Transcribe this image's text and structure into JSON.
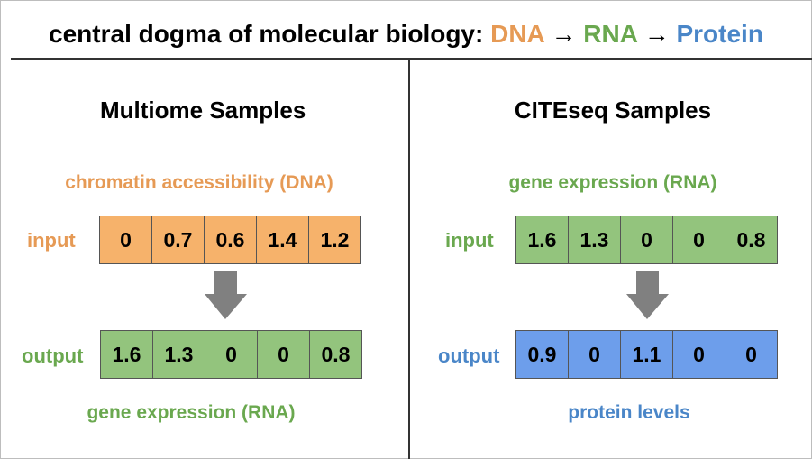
{
  "header": {
    "prefix": "central dogma of molecular biology: ",
    "dna": "DNA",
    "arrow1": " → ",
    "rna": "RNA",
    "arrow2": " → ",
    "protein": "Protein"
  },
  "colors": {
    "dna_text": "#e69a55",
    "rna_text": "#6aa84f",
    "protein_text": "#4a86c8",
    "dna_cell": "#f6b26b",
    "rna_cell": "#93c47d",
    "protein_cell": "#6d9eeb",
    "arrow": "#808080"
  },
  "panels": [
    {
      "title": "Multiome Samples",
      "input_caption": "chromatin accessibility (DNA)",
      "input_label": "input",
      "input_values": [
        "0",
        "0.7",
        "0.6",
        "1.4",
        "1.2"
      ],
      "output_label": "output",
      "output_values": [
        "1.6",
        "1.3",
        "0",
        "0",
        "0.8"
      ],
      "output_caption": "gene expression (RNA)"
    },
    {
      "title": "CITEseq Samples",
      "input_caption": "gene expression (RNA)",
      "input_label": "input",
      "input_values": [
        "1.6",
        "1.3",
        "0",
        "0",
        "0.8"
      ],
      "output_label": "output",
      "output_values": [
        "0.9",
        "0",
        "1.1",
        "0",
        "0"
      ],
      "output_caption": "protein levels"
    }
  ]
}
